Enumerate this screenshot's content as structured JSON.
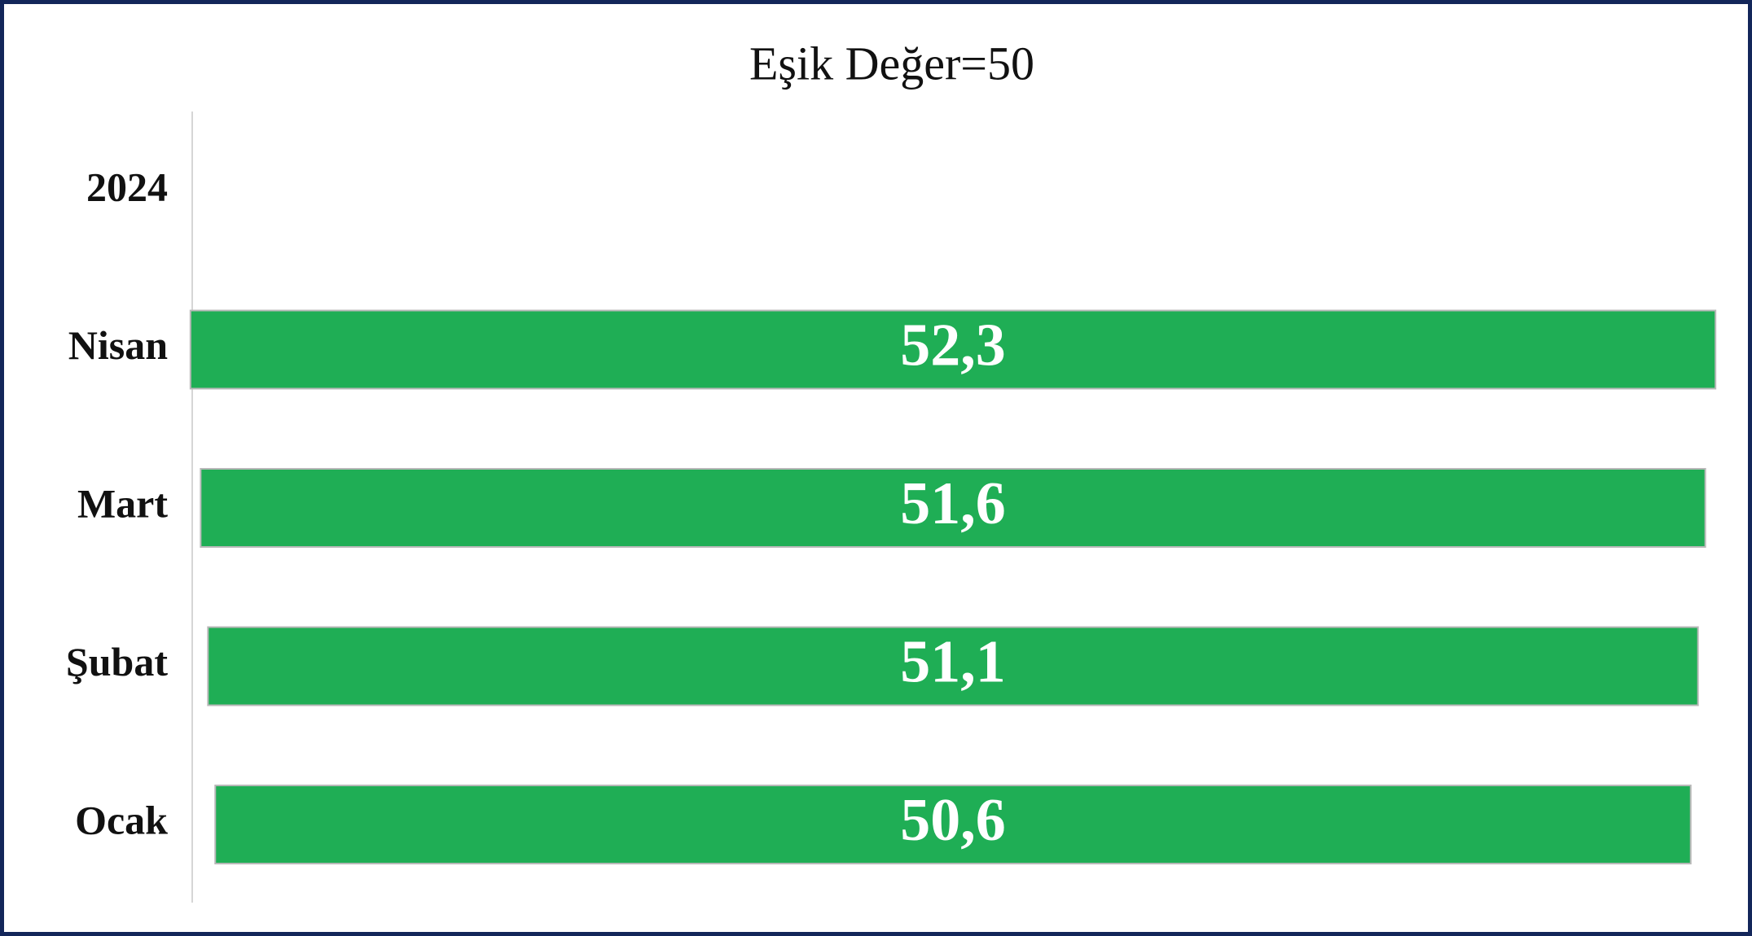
{
  "chart_data": {
    "type": "bar",
    "orientation": "horizontal",
    "title": "Eşik Değer=50",
    "categories": [
      "2024",
      "Nisan",
      "Mart",
      "Şubat",
      "Ocak"
    ],
    "values": [
      null,
      52.3,
      51.6,
      51.1,
      50.6
    ],
    "value_labels": [
      null,
      "52,3",
      "51,6",
      "51,1",
      "50,6"
    ],
    "color": "#1fae55"
  }
}
